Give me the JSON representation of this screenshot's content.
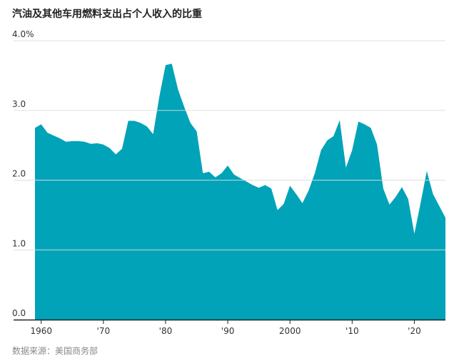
{
  "title": "汽油及其他车用燃料支出占个人收入的比重",
  "source": "数据来源：美国商务部",
  "colors": {
    "area": "#00a3b8",
    "grid": "#dddddd",
    "axis": "#222222"
  },
  "chart_data": {
    "type": "area",
    "title": "汽油及其他车用燃料支出占个人收入的比重",
    "xlabel": "",
    "ylabel": "",
    "xlim": [
      1959,
      2025
    ],
    "ylim": [
      0,
      4
    ],
    "grid": true,
    "ytick_labels": [
      "0.0",
      "1.0",
      "2.0",
      "3.0",
      "4.0%"
    ],
    "xtick_labels": [
      "1960",
      "'70",
      "'80",
      "'90",
      "2000",
      "'10",
      "'20"
    ],
    "series": [
      {
        "x": [
          1959,
          1960,
          1961,
          1962,
          1963,
          1964,
          1965,
          1966,
          1967,
          1968,
          1969,
          1970,
          1971,
          1972,
          1973,
          1974,
          1975,
          1976,
          1977,
          1978,
          1979,
          1980,
          1981,
          1982,
          1983,
          1984,
          1985,
          1986,
          1987,
          1988,
          1989,
          1990,
          1991,
          1992,
          1993,
          1994,
          1995,
          1996,
          1997,
          1998,
          1999,
          2000,
          2001,
          2002,
          2003,
          2004,
          2005,
          2006,
          2007,
          2008,
          2009,
          2010,
          2011,
          2012,
          2013,
          2014,
          2015,
          2016,
          2017,
          2018,
          2019,
          2020,
          2021,
          2022,
          2023,
          2024,
          2025
        ],
        "values": [
          2.75,
          2.8,
          2.68,
          2.64,
          2.6,
          2.55,
          2.56,
          2.56,
          2.55,
          2.52,
          2.53,
          2.51,
          2.46,
          2.37,
          2.45,
          2.85,
          2.85,
          2.82,
          2.77,
          2.66,
          3.2,
          3.65,
          3.67,
          3.3,
          3.05,
          2.82,
          2.7,
          2.1,
          2.12,
          2.04,
          2.1,
          2.21,
          2.08,
          2.03,
          1.98,
          1.93,
          1.89,
          1.93,
          1.88,
          1.57,
          1.66,
          1.92,
          1.8,
          1.67,
          1.85,
          2.1,
          2.43,
          2.57,
          2.63,
          2.86,
          2.18,
          2.43,
          2.84,
          2.8,
          2.75,
          2.51,
          1.88,
          1.65,
          1.76,
          1.9,
          1.73,
          1.23,
          1.67,
          2.13,
          1.8,
          1.63,
          1.46
        ]
      }
    ]
  }
}
